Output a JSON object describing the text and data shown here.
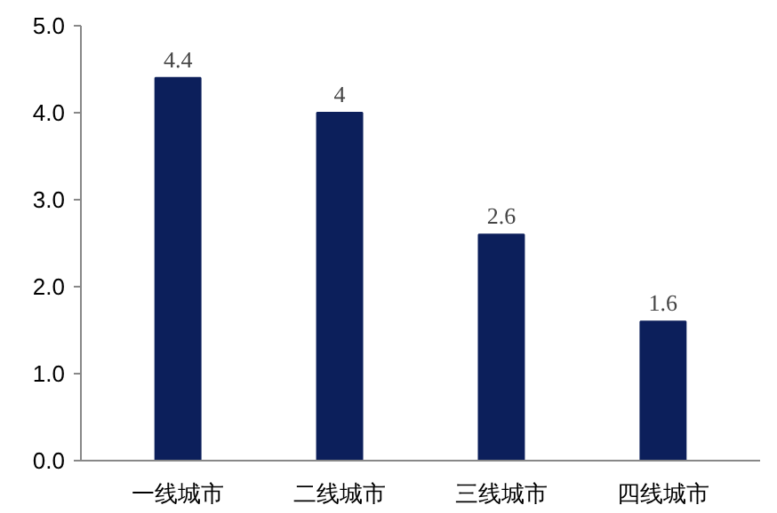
{
  "chart_data": {
    "type": "bar",
    "categories": [
      "一线城市",
      "二线城市",
      "三线城市",
      "四线城市"
    ],
    "values": [
      4.4,
      4,
      2.6,
      1.6
    ],
    "color": "#0c1f5b",
    "ylim": [
      0,
      5
    ],
    "yticks": [
      {
        "value": 0,
        "label": "0.0"
      },
      {
        "value": 1,
        "label": "1.0"
      },
      {
        "value": 2,
        "label": "2.0"
      },
      {
        "value": 3,
        "label": "3.0"
      },
      {
        "value": 4,
        "label": "4.0"
      },
      {
        "value": 5,
        "label": "5.0"
      }
    ],
    "grid": false,
    "data_labels": true
  }
}
